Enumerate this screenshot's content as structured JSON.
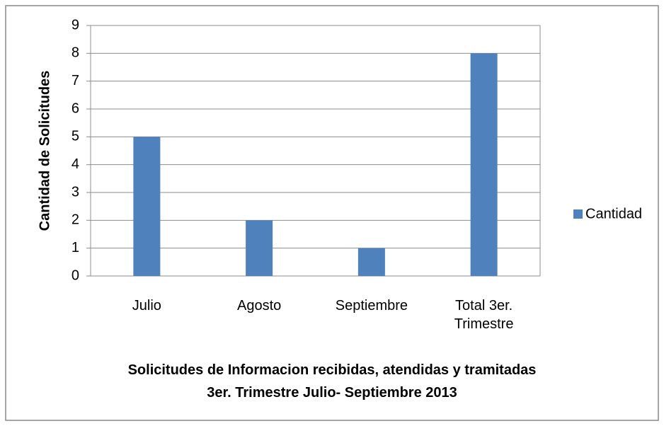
{
  "chart_data": {
    "type": "bar",
    "title": "Solicitudes de Informacion recibidas, atendidas y tramitadas",
    "subtitle": "3er. Trimestre Julio- Septiembre 2013",
    "y_label": "Cantidad de Solicitudes",
    "categories": [
      "Julio",
      "Agosto",
      "Septiembre",
      "Total 3er. Trimestre"
    ],
    "series": [
      {
        "name": "Cantidad",
        "color": "#4f81bd",
        "values": [
          5,
          2,
          1,
          8
        ]
      }
    ],
    "ylim": [
      0,
      9
    ],
    "yticks": [
      0,
      1,
      2,
      3,
      4,
      5,
      6,
      7,
      8,
      9
    ],
    "grid": true,
    "legend": "right"
  }
}
